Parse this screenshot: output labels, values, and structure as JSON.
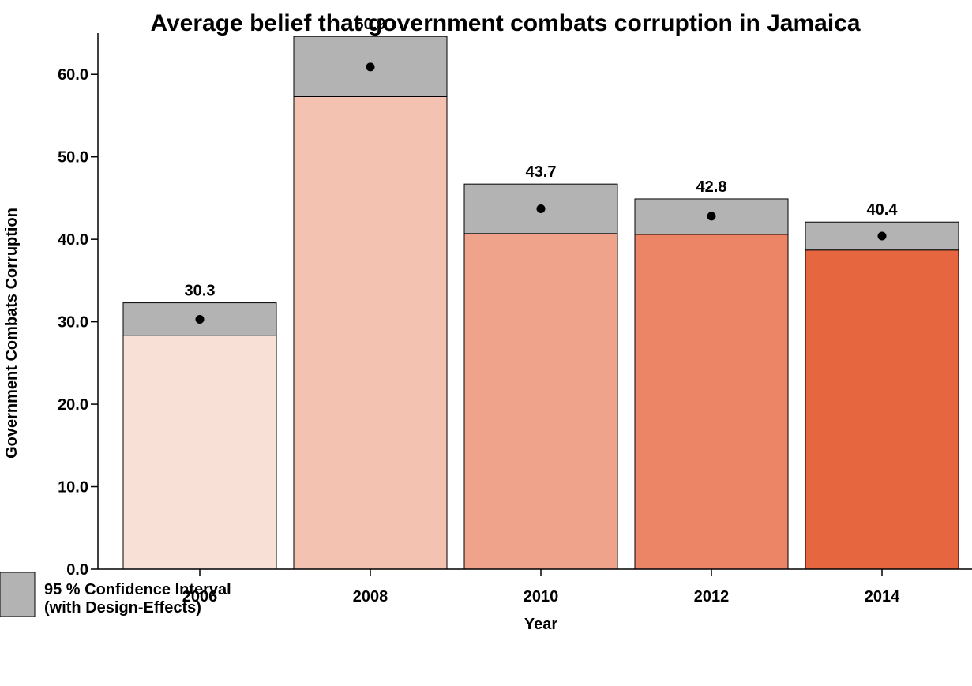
{
  "chart_data": {
    "type": "bar",
    "title": "Average belief that government combats corruption in Jamaica",
    "xlabel": "Year",
    "ylabel": "Government Combats Corruption",
    "categories": [
      "2006",
      "2008",
      "2010",
      "2012",
      "2014"
    ],
    "values": [
      30.3,
      60.9,
      43.7,
      42.8,
      40.4
    ],
    "value_labels": [
      "30.3",
      "60.9",
      "43.7",
      "42.8",
      "40.4"
    ],
    "ci_low": [
      28.3,
      57.3,
      40.7,
      40.6,
      38.7
    ],
    "ci_high": [
      32.3,
      64.6,
      46.7,
      44.9,
      42.1
    ],
    "ylim": [
      0,
      65
    ],
    "yticks": [
      0,
      10,
      20,
      30,
      40,
      50,
      60
    ],
    "ytick_labels": [
      "0.0",
      "10.0",
      "20.0",
      "30.0",
      "40.0",
      "50.0",
      "60.0"
    ],
    "bar_colors": [
      "#f9e0d7",
      "#f4c2b1",
      "#f0a38b",
      "#eb8566",
      "#e66640"
    ],
    "ci_color": "#b3b3b3",
    "grid": false,
    "legend": {
      "placement": "bottom-left",
      "label_line1": "95 % Confidence Interval",
      "label_line2": "(with Design-Effects)"
    }
  }
}
